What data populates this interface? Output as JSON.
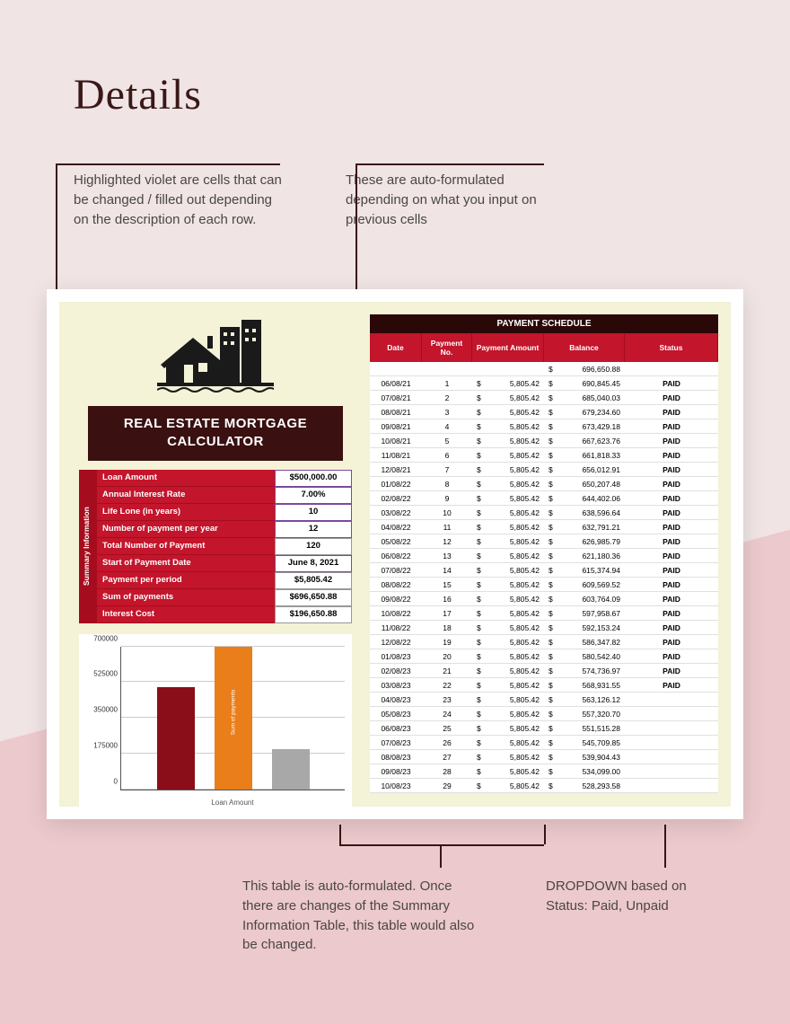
{
  "page_title": "Details",
  "annotations": {
    "a1": "Highlighted violet are cells that can be changed / filled out depending on the description of each row.",
    "a2": "These are auto-formulated depending on what you input on previous cells",
    "a3": "This table is auto-formulated. Once there are changes of the Summary Information Table, this table would also be changed.",
    "a4": "DROPDOWN based on Status: Paid, Unpaid"
  },
  "calculator": {
    "title_line1": "REAL ESTATE MORTGAGE",
    "title_line2": "CALCULATOR",
    "summary_tab": "Summary Information",
    "rows": [
      {
        "label": "Loan Amount",
        "value": "$500,000.00",
        "highlight": true
      },
      {
        "label": "Annual Interest Rate",
        "value": "7.00%",
        "highlight": true
      },
      {
        "label": "Life Lone (in years)",
        "value": "10",
        "highlight": true
      },
      {
        "label": "Number of payment per year",
        "value": "12",
        "highlight": true
      },
      {
        "label": "Total Number of Payment",
        "value": "120",
        "highlight": false
      },
      {
        "label": "Start of Payment Date",
        "value": "June 8, 2021",
        "highlight": true
      },
      {
        "label": "Payment per period",
        "value": "$5,805.42",
        "highlight": false
      },
      {
        "label": "Sum of payments",
        "value": "$696,650.88",
        "highlight": false
      },
      {
        "label": "Interest Cost",
        "value": "$196,650.88",
        "highlight": false
      }
    ]
  },
  "chart": {
    "type": "bar",
    "y_ticks": [
      "0",
      "175000",
      "350000",
      "525000",
      "700000"
    ],
    "ylim_max": 700000,
    "x_label": "Loan Amount",
    "bars": [
      {
        "label": "",
        "value": 500000,
        "color": "#8a0e1a"
      },
      {
        "label": "Sum of payments",
        "value": 696650,
        "color": "#e97e1b"
      },
      {
        "label": "",
        "value": 196650,
        "color": "#a8a8a8"
      }
    ],
    "background_color": "#ffffff",
    "grid_color": "#cccccc"
  },
  "schedule": {
    "title": "PAYMENT SCHEDULE",
    "headers": {
      "date": "Date",
      "no": "Payment No.",
      "amt": "Payment Amount",
      "bal": "Balance",
      "stat": "Status"
    },
    "opening_balance": "696,650.88",
    "rows": [
      {
        "date": "06/08/21",
        "no": "1",
        "amt": "5,805.42",
        "bal": "690,845.45",
        "stat": "PAID"
      },
      {
        "date": "07/08/21",
        "no": "2",
        "amt": "5,805.42",
        "bal": "685,040.03",
        "stat": "PAID"
      },
      {
        "date": "08/08/21",
        "no": "3",
        "amt": "5,805.42",
        "bal": "679,234.60",
        "stat": "PAID"
      },
      {
        "date": "09/08/21",
        "no": "4",
        "amt": "5,805.42",
        "bal": "673,429.18",
        "stat": "PAID"
      },
      {
        "date": "10/08/21",
        "no": "5",
        "amt": "5,805.42",
        "bal": "667,623.76",
        "stat": "PAID"
      },
      {
        "date": "11/08/21",
        "no": "6",
        "amt": "5,805.42",
        "bal": "661,818.33",
        "stat": "PAID"
      },
      {
        "date": "12/08/21",
        "no": "7",
        "amt": "5,805.42",
        "bal": "656,012.91",
        "stat": "PAID"
      },
      {
        "date": "01/08/22",
        "no": "8",
        "amt": "5,805.42",
        "bal": "650,207.48",
        "stat": "PAID"
      },
      {
        "date": "02/08/22",
        "no": "9",
        "amt": "5,805.42",
        "bal": "644,402.06",
        "stat": "PAID"
      },
      {
        "date": "03/08/22",
        "no": "10",
        "amt": "5,805.42",
        "bal": "638,596.64",
        "stat": "PAID"
      },
      {
        "date": "04/08/22",
        "no": "11",
        "amt": "5,805.42",
        "bal": "632,791.21",
        "stat": "PAID"
      },
      {
        "date": "05/08/22",
        "no": "12",
        "amt": "5,805.42",
        "bal": "626,985.79",
        "stat": "PAID"
      },
      {
        "date": "06/08/22",
        "no": "13",
        "amt": "5,805.42",
        "bal": "621,180.36",
        "stat": "PAID"
      },
      {
        "date": "07/08/22",
        "no": "14",
        "amt": "5,805.42",
        "bal": "615,374.94",
        "stat": "PAID"
      },
      {
        "date": "08/08/22",
        "no": "15",
        "amt": "5,805.42",
        "bal": "609,569.52",
        "stat": "PAID"
      },
      {
        "date": "09/08/22",
        "no": "16",
        "amt": "5,805.42",
        "bal": "603,764.09",
        "stat": "PAID"
      },
      {
        "date": "10/08/22",
        "no": "17",
        "amt": "5,805.42",
        "bal": "597,958.67",
        "stat": "PAID"
      },
      {
        "date": "11/08/22",
        "no": "18",
        "amt": "5,805.42",
        "bal": "592,153.24",
        "stat": "PAID"
      },
      {
        "date": "12/08/22",
        "no": "19",
        "amt": "5,805.42",
        "bal": "586,347.82",
        "stat": "PAID"
      },
      {
        "date": "01/08/23",
        "no": "20",
        "amt": "5,805.42",
        "bal": "580,542.40",
        "stat": "PAID"
      },
      {
        "date": "02/08/23",
        "no": "21",
        "amt": "5,805.42",
        "bal": "574,736.97",
        "stat": "PAID"
      },
      {
        "date": "03/08/23",
        "no": "22",
        "amt": "5,805.42",
        "bal": "568,931.55",
        "stat": "PAID"
      },
      {
        "date": "04/08/23",
        "no": "23",
        "amt": "5,805.42",
        "bal": "563,126.12",
        "stat": ""
      },
      {
        "date": "05/08/23",
        "no": "24",
        "amt": "5,805.42",
        "bal": "557,320.70",
        "stat": ""
      },
      {
        "date": "06/08/23",
        "no": "25",
        "amt": "5,805.42",
        "bal": "551,515.28",
        "stat": ""
      },
      {
        "date": "07/08/23",
        "no": "26",
        "amt": "5,805.42",
        "bal": "545,709.85",
        "stat": ""
      },
      {
        "date": "08/08/23",
        "no": "27",
        "amt": "5,805.42",
        "bal": "539,904.43",
        "stat": ""
      },
      {
        "date": "09/08/23",
        "no": "28",
        "amt": "5,805.42",
        "bal": "534,099.00",
        "stat": ""
      },
      {
        "date": "10/08/23",
        "no": "29",
        "amt": "5,805.42",
        "bal": "528,293.58",
        "stat": ""
      }
    ]
  },
  "colors": {
    "header_dark": "#3a1010",
    "brand_red": "#c3152b",
    "brand_red_dark": "#a50d1e",
    "sheet_bg": "#f4f2d7",
    "annotation_line": "#3b1515"
  }
}
